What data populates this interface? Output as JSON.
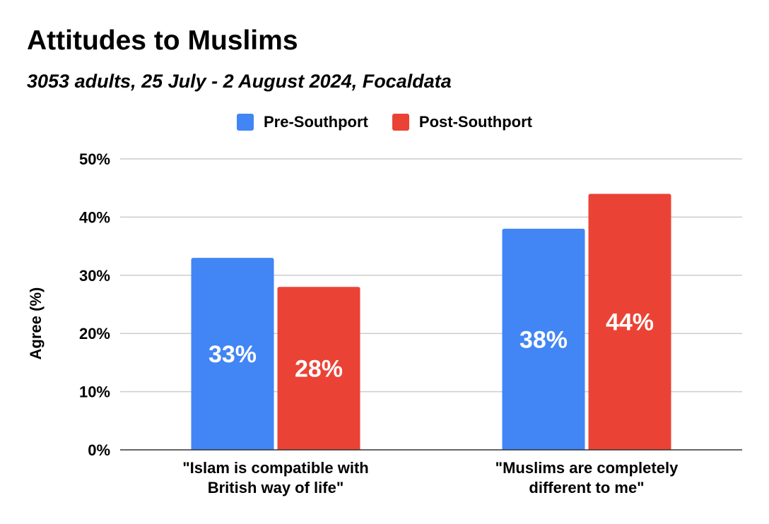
{
  "chart_data": {
    "type": "bar",
    "title": "Attitudes to Muslims",
    "subtitle": "3053 adults, 25 July - 2 August 2024, Focaldata",
    "ylabel": "Agree (%)",
    "xlabel": "",
    "ylim": [
      0,
      50
    ],
    "yticks": [
      0,
      10,
      20,
      30,
      40,
      50
    ],
    "ytick_labels": [
      "0%",
      "10%",
      "20%",
      "30%",
      "40%",
      "50%"
    ],
    "grid": true,
    "legend_position": "top-center",
    "categories": [
      [
        "\"Islam is compatible with",
        "British way of life\""
      ],
      [
        "\"Muslims are completely",
        "different to me\""
      ]
    ],
    "series": [
      {
        "name": "Pre-Southport",
        "color": "#4285F4",
        "values": [
          33,
          38
        ],
        "labels": [
          "33%",
          "38%"
        ]
      },
      {
        "name": "Post-Southport",
        "color": "#EA4335",
        "values": [
          28,
          44
        ],
        "labels": [
          "28%",
          "44%"
        ]
      }
    ]
  }
}
